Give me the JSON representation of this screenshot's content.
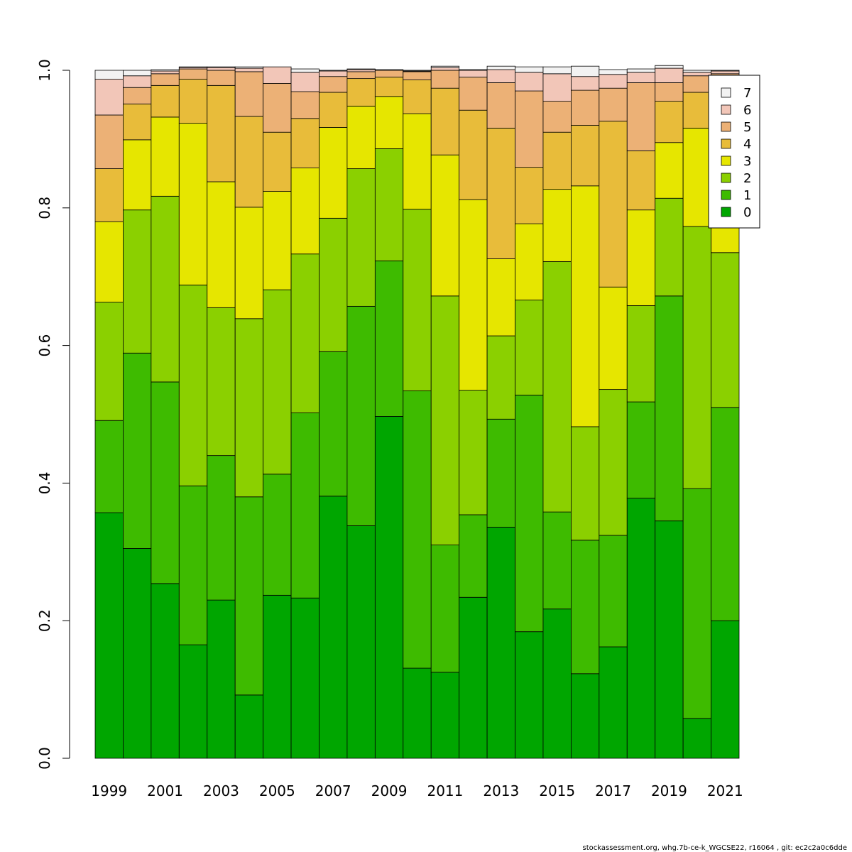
{
  "chart_data": {
    "type": "bar",
    "stacked": true,
    "normalized": true,
    "title": "",
    "xlabel": "",
    "ylabel": "",
    "ylim": [
      0,
      1
    ],
    "y_ticks": [
      "0.0",
      "0.2",
      "0.4",
      "0.6",
      "0.8",
      "1.0"
    ],
    "x_tick_labels": [
      "1999",
      "2001",
      "2003",
      "2005",
      "2007",
      "2009",
      "2011",
      "2013",
      "2015",
      "2017",
      "2019",
      "2021"
    ],
    "categories": [
      "1999",
      "2000",
      "2001",
      "2002",
      "2003",
      "2004",
      "2005",
      "2006",
      "2007",
      "2008",
      "2009",
      "2010",
      "2011",
      "2012",
      "2013",
      "2014",
      "2015",
      "2016",
      "2017",
      "2018",
      "2019",
      "2020",
      "2021"
    ],
    "legend_position": "top-right",
    "series": [
      {
        "name": "0",
        "color": "#00A600",
        "values": [
          0.357,
          0.305,
          0.254,
          0.165,
          0.23,
          0.092,
          0.237,
          0.233,
          0.381,
          0.338,
          0.497,
          0.131,
          0.125,
          0.234,
          0.336,
          0.184,
          0.217,
          0.123,
          0.162,
          0.378,
          0.345,
          0.058,
          0.2
        ]
      },
      {
        "name": "1",
        "color": "#3EBB00",
        "values": [
          0.134,
          0.284,
          0.293,
          0.231,
          0.21,
          0.288,
          0.176,
          0.269,
          0.21,
          0.319,
          0.226,
          0.403,
          0.185,
          0.12,
          0.157,
          0.344,
          0.141,
          0.194,
          0.162,
          0.14,
          0.327,
          0.334,
          0.31
        ]
      },
      {
        "name": "2",
        "color": "#8BD000",
        "values": [
          0.172,
          0.208,
          0.27,
          0.292,
          0.215,
          0.259,
          0.268,
          0.231,
          0.194,
          0.2,
          0.163,
          0.264,
          0.362,
          0.181,
          0.121,
          0.138,
          0.364,
          0.165,
          0.212,
          0.14,
          0.142,
          0.381,
          0.225
        ]
      },
      {
        "name": "3",
        "color": "#E6E600",
        "values": [
          0.117,
          0.102,
          0.115,
          0.235,
          0.183,
          0.162,
          0.143,
          0.125,
          0.132,
          0.091,
          0.076,
          0.139,
          0.205,
          0.277,
          0.112,
          0.111,
          0.105,
          0.35,
          0.149,
          0.139,
          0.081,
          0.143,
          0.08
        ]
      },
      {
        "name": "4",
        "color": "#E8BC3A",
        "values": [
          0.077,
          0.052,
          0.046,
          0.064,
          0.14,
          0.132,
          0.086,
          0.072,
          0.051,
          0.04,
          0.028,
          0.049,
          0.097,
          0.13,
          0.19,
          0.082,
          0.083,
          0.088,
          0.241,
          0.086,
          0.06,
          0.052,
          0.14
        ]
      },
      {
        "name": "5",
        "color": "#ECB176",
        "values": [
          0.078,
          0.024,
          0.017,
          0.015,
          0.022,
          0.065,
          0.071,
          0.039,
          0.023,
          0.01,
          0.01,
          0.012,
          0.026,
          0.048,
          0.066,
          0.111,
          0.045,
          0.051,
          0.048,
          0.099,
          0.027,
          0.024,
          0.04
        ]
      },
      {
        "name": "6",
        "color": "#F2C6B8",
        "values": [
          0.052,
          0.017,
          0.004,
          0.002,
          0.004,
          0.005,
          0.024,
          0.028,
          0.008,
          0.003,
          0.0,
          0.001,
          0.004,
          0.01,
          0.019,
          0.027,
          0.04,
          0.02,
          0.02,
          0.015,
          0.021,
          0.005,
          0.004
        ]
      },
      {
        "name": "7",
        "color": "#F2F2F2",
        "values": [
          0.013,
          0.008,
          0.002,
          0.001,
          0.001,
          0.002,
          0.0,
          0.005,
          0.001,
          0.001,
          0.001,
          0.001,
          0.002,
          0.001,
          0.005,
          0.008,
          0.01,
          0.015,
          0.007,
          0.005,
          0.004,
          0.003,
          0.001
        ]
      }
    ]
  },
  "footer": {
    "caption": "stockassessment.org, whg.7b-ce-k_WGCSE22, r16064 , git: ec2c2a0c6dde"
  }
}
